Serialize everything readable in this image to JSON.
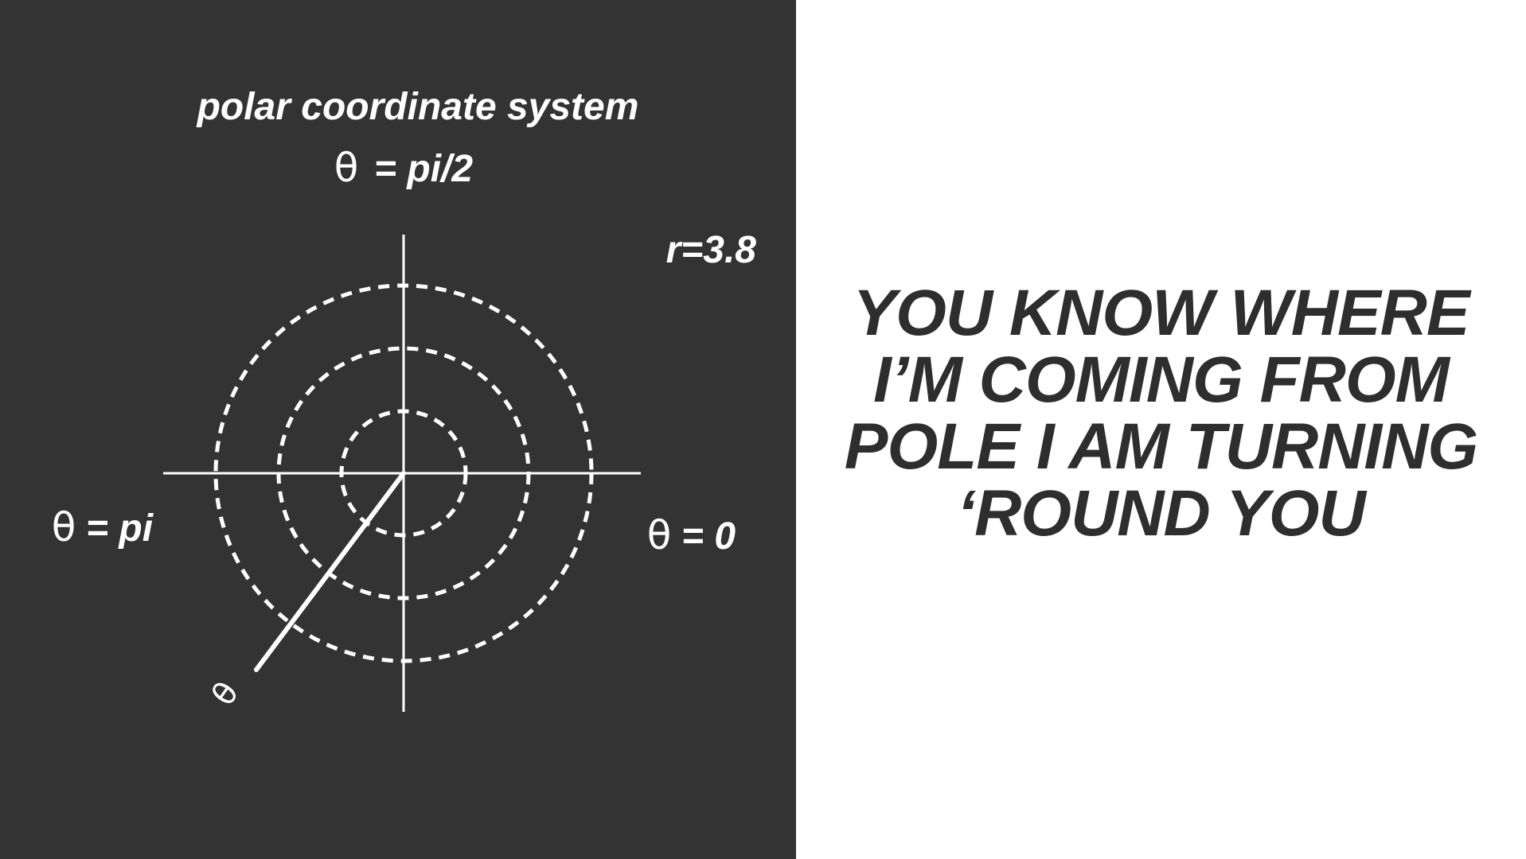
{
  "diagram": {
    "title": "polar coordinate system",
    "theta_symbol": "θ",
    "label_top": "= pi/2",
    "label_left": "= pi",
    "label_right": "= 0",
    "radius_label": "r=3.8",
    "angle_ray_label": "θ",
    "colors": {
      "background": "#333333",
      "foreground": "#ffffff"
    }
  },
  "lyrics": {
    "lines": [
      "YOU KNOW WHERE",
      "I’M COMING FROM",
      "POLE I AM TURNING",
      "‘ROUND YOU"
    ],
    "color": "#2e2e2e"
  }
}
